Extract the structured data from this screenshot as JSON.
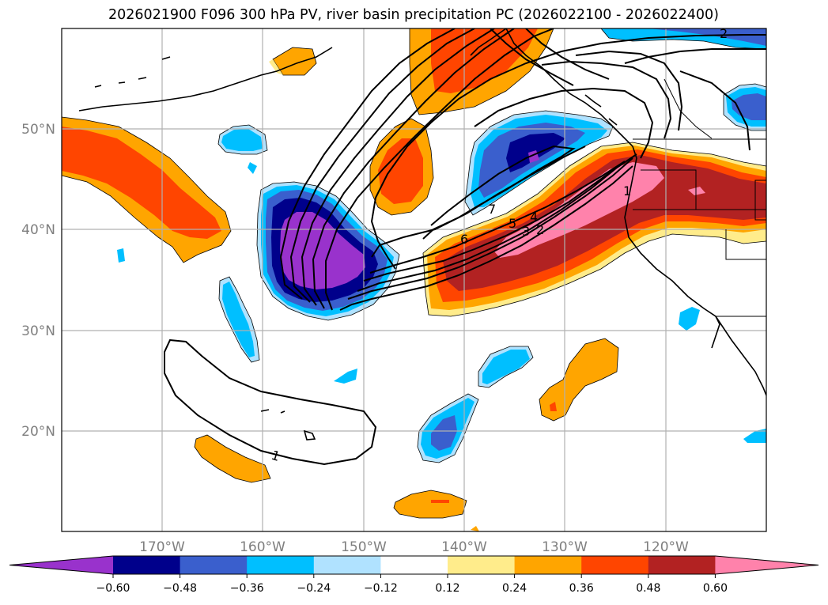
{
  "title": "2026021900 F096 300 hPa PV, river basin precipitation PC (2026022100 - 2026022400)",
  "lon_labels": [
    "170°W",
    "160°W",
    "150°W",
    "140°W",
    "130°W",
    "120°W"
  ],
  "lat_labels": [
    "50°N",
    "40°N",
    "30°N",
    "20°N"
  ],
  "contour_labels": [
    "1",
    "1",
    "2",
    "3",
    "4",
    "5",
    "6",
    "7",
    "2"
  ],
  "colorbar": {
    "ticks": [
      "−0.60",
      "−0.48",
      "−0.36",
      "−0.24",
      "−0.12",
      "0.12",
      "0.24",
      "0.36",
      "0.48",
      "0.60"
    ],
    "colors": [
      "#9932cc",
      "#00008b",
      "#3a5fcd",
      "#00bfff",
      "#b0e2ff",
      "#ffffff",
      "#ffec8b",
      "#ffa500",
      "#ff4500",
      "#b22222",
      "#ff82ab"
    ]
  },
  "map": {
    "lon_range": [
      -180,
      -110
    ],
    "lat_range": [
      10,
      60
    ],
    "projection": "PlateCarree",
    "coastlines": true,
    "state_borders": true
  }
}
